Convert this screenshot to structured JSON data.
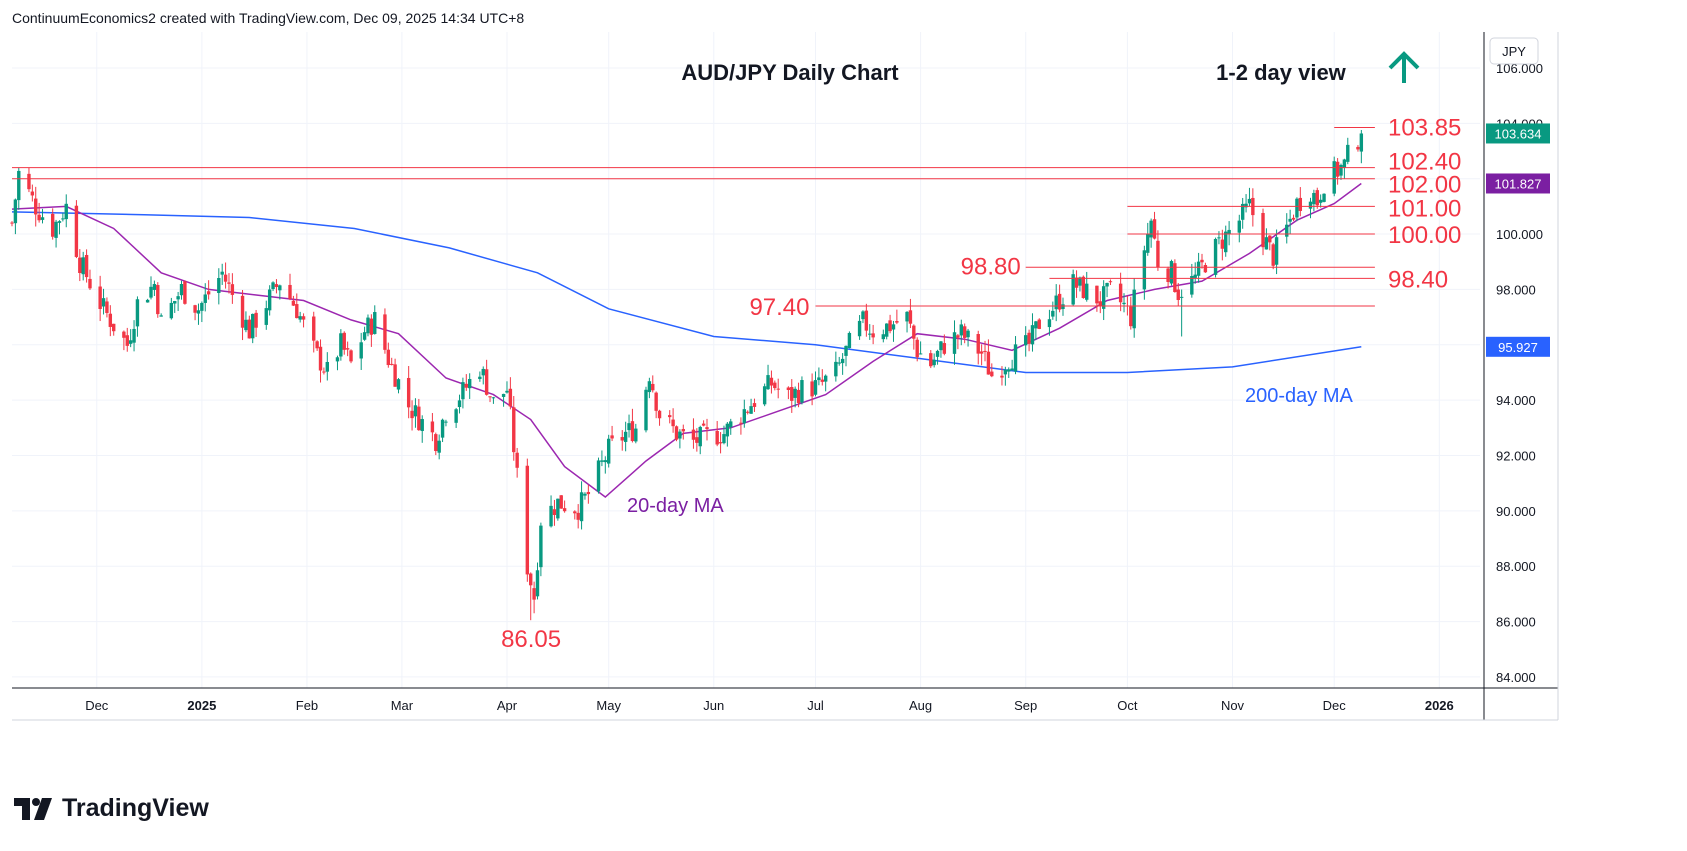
{
  "header": {
    "attribution": "ContinuumEconomics2 created with TradingView.com, Dec 09, 2025 14:34 UTC+8"
  },
  "footer": {
    "brand": "TradingView"
  },
  "chart_data": {
    "type": "candlestick",
    "title": "AUD/JPY Daily Chart",
    "view_label": "1-2 day view",
    "view_direction": "up",
    "currency_label": "JPY",
    "colors": {
      "up": "#089981",
      "down": "#f23645",
      "ma20": "#9c27b0",
      "ma200": "#2962ff",
      "level_line": "#f23645",
      "grid": "#f0f3fa",
      "label_red": "#f23645",
      "label_purple": "#7b1fa2",
      "label_blue": "#2962ff",
      "arrow": "#089981"
    },
    "ylim": [
      83.6,
      107.3
    ],
    "y_ticks": [
      "84.000",
      "86.000",
      "88.000",
      "90.000",
      "92.000",
      "94.000",
      "96.000",
      "98.000",
      "100.000",
      "102.000",
      "104.000",
      "106.000"
    ],
    "x_axis": {
      "start": "2024-11-06",
      "end": "2026-01-13",
      "ticks": [
        {
          "label": "Dec",
          "date": "2024-12-01"
        },
        {
          "label": "2025",
          "date": "2025-01-01"
        },
        {
          "label": "Feb",
          "date": "2025-02-01"
        },
        {
          "label": "Mar",
          "date": "2025-03-01"
        },
        {
          "label": "Apr",
          "date": "2025-04-01"
        },
        {
          "label": "May",
          "date": "2025-05-01"
        },
        {
          "label": "Jun",
          "date": "2025-06-01"
        },
        {
          "label": "Jul",
          "date": "2025-07-01"
        },
        {
          "label": "Aug",
          "date": "2025-08-01"
        },
        {
          "label": "Sep",
          "date": "2025-09-01"
        },
        {
          "label": "Oct",
          "date": "2025-10-01"
        },
        {
          "label": "Nov",
          "date": "2025-11-01"
        },
        {
          "label": "Dec",
          "date": "2025-12-01"
        },
        {
          "label": "2026",
          "date": "2026-01-01"
        }
      ]
    },
    "price_path": [
      {
        "date": "2024-11-06",
        "close": 100.4
      },
      {
        "date": "2024-11-08",
        "close": 102.2
      },
      {
        "date": "2024-11-13",
        "close": 101.0
      },
      {
        "date": "2024-11-18",
        "close": 100.2
      },
      {
        "date": "2024-11-22",
        "close": 101.0
      },
      {
        "date": "2024-11-26",
        "close": 99.0
      },
      {
        "date": "2024-12-02",
        "close": 97.5
      },
      {
        "date": "2024-12-06",
        "close": 96.7
      },
      {
        "date": "2024-12-10",
        "close": 96.0
      },
      {
        "date": "2024-12-13",
        "close": 97.5
      },
      {
        "date": "2024-12-18",
        "close": 98.2
      },
      {
        "date": "2024-12-20",
        "close": 96.8
      },
      {
        "date": "2024-12-26",
        "close": 98.0
      },
      {
        "date": "2024-12-31",
        "close": 97.3
      },
      {
        "date": "2025-01-07",
        "close": 98.6
      },
      {
        "date": "2025-01-10",
        "close": 97.8
      },
      {
        "date": "2025-01-15",
        "close": 96.5
      },
      {
        "date": "2025-01-20",
        "close": 97.5
      },
      {
        "date": "2025-01-24",
        "close": 98.3
      },
      {
        "date": "2025-01-29",
        "close": 97.3
      },
      {
        "date": "2025-02-03",
        "close": 95.8
      },
      {
        "date": "2025-02-07",
        "close": 95.0
      },
      {
        "date": "2025-02-11",
        "close": 96.0
      },
      {
        "date": "2025-02-14",
        "close": 95.3
      },
      {
        "date": "2025-02-18",
        "close": 96.5
      },
      {
        "date": "2025-02-21",
        "close": 96.9
      },
      {
        "date": "2025-02-25",
        "close": 95.5
      },
      {
        "date": "2025-03-03",
        "close": 93.8
      },
      {
        "date": "2025-03-07",
        "close": 93.2
      },
      {
        "date": "2025-03-11",
        "close": 92.6
      },
      {
        "date": "2025-03-14",
        "close": 93.6
      },
      {
        "date": "2025-03-19",
        "close": 94.3
      },
      {
        "date": "2025-03-24",
        "close": 95.2
      },
      {
        "date": "2025-03-28",
        "close": 93.9
      },
      {
        "date": "2025-04-01",
        "close": 94.4
      },
      {
        "date": "2025-04-03",
        "close": 92.3
      },
      {
        "date": "2025-04-07",
        "close": 88.0
      },
      {
        "date": "2025-04-09",
        "close": 86.9
      },
      {
        "date": "2025-04-11",
        "close": 89.7
      },
      {
        "date": "2025-04-16",
        "close": 90.3
      },
      {
        "date": "2025-04-22",
        "close": 90.1
      },
      {
        "date": "2025-04-25",
        "close": 90.6
      },
      {
        "date": "2025-05-01",
        "close": 92.2
      },
      {
        "date": "2025-05-06",
        "close": 92.8
      },
      {
        "date": "2025-05-09",
        "close": 93.0
      },
      {
        "date": "2025-05-13",
        "close": 95.0
      },
      {
        "date": "2025-05-16",
        "close": 93.5
      },
      {
        "date": "2025-05-21",
        "close": 92.8
      },
      {
        "date": "2025-05-26",
        "close": 92.5
      },
      {
        "date": "2025-05-30",
        "close": 92.7
      },
      {
        "date": "2025-06-04",
        "close": 92.8
      },
      {
        "date": "2025-06-09",
        "close": 93.5
      },
      {
        "date": "2025-06-13",
        "close": 94.0
      },
      {
        "date": "2025-06-18",
        "close": 94.6
      },
      {
        "date": "2025-06-23",
        "close": 94.1
      },
      {
        "date": "2025-06-27",
        "close": 94.4
      },
      {
        "date": "2025-07-02",
        "close": 94.5
      },
      {
        "date": "2025-07-07",
        "close": 95.0
      },
      {
        "date": "2025-07-11",
        "close": 96.0
      },
      {
        "date": "2025-07-15",
        "close": 96.8
      },
      {
        "date": "2025-07-18",
        "close": 96.5
      },
      {
        "date": "2025-07-23",
        "close": 96.7
      },
      {
        "date": "2025-07-28",
        "close": 97.0
      },
      {
        "date": "2025-07-31",
        "close": 95.8
      },
      {
        "date": "2025-08-04",
        "close": 95.3
      },
      {
        "date": "2025-08-08",
        "close": 96.0
      },
      {
        "date": "2025-08-13",
        "close": 96.4
      },
      {
        "date": "2025-08-19",
        "close": 95.7
      },
      {
        "date": "2025-08-22",
        "close": 94.9
      },
      {
        "date": "2025-08-27",
        "close": 95.5
      },
      {
        "date": "2025-09-02",
        "close": 96.0
      },
      {
        "date": "2025-09-05",
        "close": 96.8
      },
      {
        "date": "2025-09-10",
        "close": 97.5
      },
      {
        "date": "2025-09-15",
        "close": 98.2
      },
      {
        "date": "2025-09-18",
        "close": 98.0
      },
      {
        "date": "2025-09-23",
        "close": 97.6
      },
      {
        "date": "2025-09-26",
        "close": 97.9
      },
      {
        "date": "2025-09-30",
        "close": 97.4
      },
      {
        "date": "2025-10-02",
        "close": 97.0
      },
      {
        "date": "2025-10-06",
        "close": 99.5
      },
      {
        "date": "2025-10-08",
        "close": 100.5
      },
      {
        "date": "2025-10-10",
        "close": 99.0
      },
      {
        "date": "2025-10-14",
        "close": 98.6
      },
      {
        "date": "2025-10-16",
        "close": 97.9
      },
      {
        "date": "2025-10-21",
        "close": 98.4
      },
      {
        "date": "2025-10-24",
        "close": 99.0
      },
      {
        "date": "2025-10-29",
        "close": 99.8
      },
      {
        "date": "2025-11-03",
        "close": 100.5
      },
      {
        "date": "2025-11-06",
        "close": 101.0
      },
      {
        "date": "2025-11-10",
        "close": 99.9
      },
      {
        "date": "2025-11-13",
        "close": 99.2
      },
      {
        "date": "2025-11-17",
        "close": 100.2
      },
      {
        "date": "2025-11-20",
        "close": 101.1
      },
      {
        "date": "2025-11-24",
        "close": 101.6
      },
      {
        "date": "2025-11-26",
        "close": 101.2
      },
      {
        "date": "2025-11-28",
        "close": 101.9
      },
      {
        "date": "2025-12-02",
        "close": 102.3
      },
      {
        "date": "2025-12-04",
        "close": 102.5
      },
      {
        "date": "2025-12-06",
        "close": 103.1
      },
      {
        "date": "2025-12-09",
        "close": 103.634
      }
    ],
    "ma20": [
      {
        "date": "2024-11-06",
        "value": 100.9
      },
      {
        "date": "2024-11-22",
        "value": 101.0
      },
      {
        "date": "2024-12-06",
        "value": 100.2
      },
      {
        "date": "2024-12-20",
        "value": 98.6
      },
      {
        "date": "2025-01-03",
        "value": 98.0
      },
      {
        "date": "2025-01-17",
        "value": 97.8
      },
      {
        "date": "2025-01-31",
        "value": 97.6
      },
      {
        "date": "2025-02-14",
        "value": 96.9
      },
      {
        "date": "2025-02-28",
        "value": 96.4
      },
      {
        "date": "2025-03-14",
        "value": 94.8
      },
      {
        "date": "2025-03-28",
        "value": 94.2
      },
      {
        "date": "2025-04-08",
        "value": 93.3
      },
      {
        "date": "2025-04-18",
        "value": 91.6
      },
      {
        "date": "2025-04-30",
        "value": 90.5
      },
      {
        "date": "2025-05-12",
        "value": 91.8
      },
      {
        "date": "2025-05-23",
        "value": 92.8
      },
      {
        "date": "2025-06-06",
        "value": 93.0
      },
      {
        "date": "2025-06-20",
        "value": 93.6
      },
      {
        "date": "2025-07-04",
        "value": 94.2
      },
      {
        "date": "2025-07-18",
        "value": 95.4
      },
      {
        "date": "2025-07-31",
        "value": 96.4
      },
      {
        "date": "2025-08-14",
        "value": 96.2
      },
      {
        "date": "2025-08-28",
        "value": 95.8
      },
      {
        "date": "2025-09-11",
        "value": 96.6
      },
      {
        "date": "2025-09-25",
        "value": 97.6
      },
      {
        "date": "2025-10-09",
        "value": 98.0
      },
      {
        "date": "2025-10-23",
        "value": 98.3
      },
      {
        "date": "2025-11-06",
        "value": 99.3
      },
      {
        "date": "2025-11-20",
        "value": 100.5
      },
      {
        "date": "2025-12-01",
        "value": 101.1
      },
      {
        "date": "2025-12-09",
        "value": 101.827
      }
    ],
    "ma200": [
      {
        "date": "2024-11-06",
        "value": 100.8
      },
      {
        "date": "2024-12-15",
        "value": 100.7
      },
      {
        "date": "2025-01-15",
        "value": 100.6
      },
      {
        "date": "2025-02-15",
        "value": 100.2
      },
      {
        "date": "2025-03-15",
        "value": 99.5
      },
      {
        "date": "2025-04-10",
        "value": 98.6
      },
      {
        "date": "2025-05-01",
        "value": 97.3
      },
      {
        "date": "2025-06-01",
        "value": 96.3
      },
      {
        "date": "2025-07-01",
        "value": 96.0
      },
      {
        "date": "2025-08-01",
        "value": 95.5
      },
      {
        "date": "2025-09-01",
        "value": 95.0
      },
      {
        "date": "2025-10-01",
        "value": 95.0
      },
      {
        "date": "2025-11-01",
        "value": 95.2
      },
      {
        "date": "2025-12-09",
        "value": 95.927
      }
    ],
    "levels": [
      {
        "label": "103.85",
        "value": 103.85,
        "from": "2025-12-01",
        "to": "2025-12-13"
      },
      {
        "label": "102.40",
        "value": 102.4,
        "from": "2024-11-06",
        "to": "2025-12-13"
      },
      {
        "label": "102.00",
        "value": 102.0,
        "from": "2024-11-06",
        "to": "2025-12-13"
      },
      {
        "label": "101.00",
        "value": 101.0,
        "from": "2025-10-01",
        "to": "2025-12-13"
      },
      {
        "label": "100.00",
        "value": 100.0,
        "from": "2025-10-01",
        "to": "2025-12-13"
      },
      {
        "label": "98.80",
        "value": 98.8,
        "from": "2025-09-01",
        "to": "2025-12-13"
      },
      {
        "label": "98.40",
        "value": 98.4,
        "from": "2025-09-08",
        "to": "2025-12-13"
      },
      {
        "label": "97.40",
        "value": 97.4,
        "from": "2025-07-01",
        "to": "2025-12-13"
      },
      {
        "label": "86.05",
        "value": 86.05,
        "from": "2025-04-09",
        "to": "2025-04-09"
      }
    ],
    "annotations": [
      {
        "text": "20-day MA",
        "color": "#7b1fa2"
      },
      {
        "text": "200-day MA",
        "color": "#2962ff"
      }
    ],
    "price_tags": [
      {
        "value": "103.634",
        "bg": "#089981"
      },
      {
        "value": "101.827",
        "bg": "#7b1fa2"
      },
      {
        "value": "95.927",
        "bg": "#2962ff"
      }
    ]
  }
}
